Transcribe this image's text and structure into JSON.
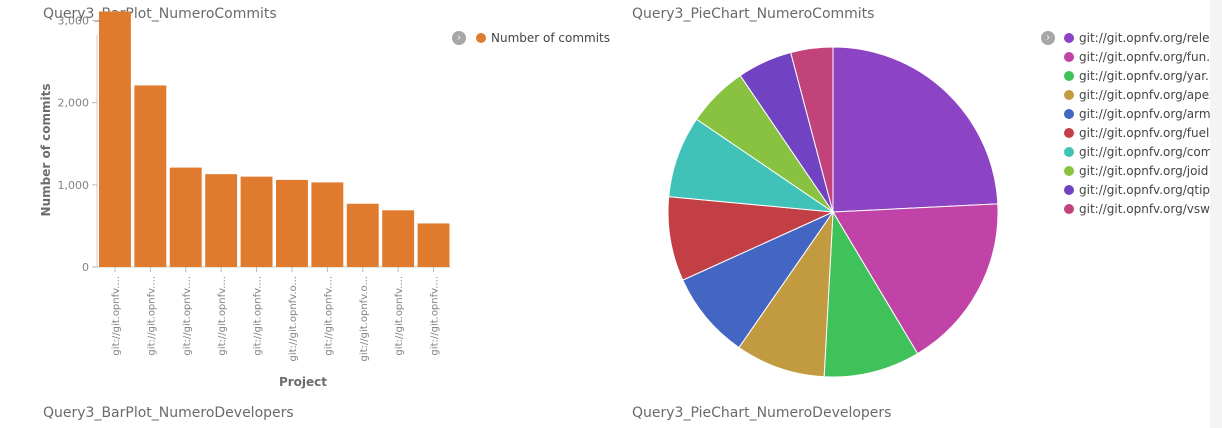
{
  "panels": {
    "bar_title": "Query3_BarPlot_NumeroCommits",
    "pie_title": "Query3_PieChart_NumeroCommits",
    "bottom_left_title": "Query3_BarPlot_NumeroDevelopers",
    "bottom_right_title": "Query3_PieChart_NumeroDevelopers"
  },
  "bar_legend": {
    "toggle_icon": "chevron-right-icon",
    "label": "Number of commits",
    "color": "#e07b2e"
  },
  "pie_legend": {
    "toggle_icon": "chevron-right-icon",
    "items": [
      {
        "label": "git://git.opnfv.org/rele...",
        "color": "#8c43c4"
      },
      {
        "label": "git://git.opnfv.org/fun...",
        "color": "#c243a8"
      },
      {
        "label": "git://git.opnfv.org/yar...",
        "color": "#40c25a"
      },
      {
        "label": "git://git.opnfv.org/apex",
        "color": "#c29a40"
      },
      {
        "label": "git://git.opnfv.org/arm...",
        "color": "#4366c2"
      },
      {
        "label": "git://git.opnfv.org/fuel",
        "color": "#c24045"
      },
      {
        "label": "git://git.opnfv.org/com...",
        "color": "#40c2b8"
      },
      {
        "label": "git://git.opnfv.org/joid",
        "color": "#89c240"
      },
      {
        "label": "git://git.opnfv.org/qtip",
        "color": "#7143c2"
      },
      {
        "label": "git://git.opnfv.org/vsw...",
        "color": "#c2437a"
      }
    ]
  },
  "chart_data": [
    {
      "type": "bar",
      "title": "Query3_BarPlot_NumeroCommits",
      "xlabel": "Project",
      "ylabel": "Number of commits",
      "categories": [
        "git://git.opnfv....",
        "git://git.opnfv....",
        "git://git.opnfv....",
        "git://git.opnfv....",
        "git://git.opnfv....",
        "git://git.opnfv.o...",
        "git://git.opnfv....",
        "git://git.opnfv.o...",
        "git://git.opnfv....",
        "git://git.opnfv...."
      ],
      "series": [
        {
          "name": "Number of commits",
          "values": [
            3110,
            2210,
            1210,
            1130,
            1100,
            1060,
            1030,
            770,
            690,
            530
          ]
        }
      ],
      "yticks": [
        0,
        1000,
        2000,
        3000
      ],
      "ytick_labels": [
        "0",
        "1,000",
        "2,000",
        "3,000"
      ],
      "ylim": [
        0,
        3250
      ],
      "legend_position": "top-right",
      "color": "#e07b2e"
    },
    {
      "type": "pie",
      "title": "Query3_PieChart_NumeroCommits",
      "categories": [
        "git://git.opnfv.org/rele...",
        "git://git.opnfv.org/fun...",
        "git://git.opnfv.org/yar...",
        "git://git.opnfv.org/apex",
        "git://git.opnfv.org/arm...",
        "git://git.opnfv.org/fuel",
        "git://git.opnfv.org/com...",
        "git://git.opnfv.org/joid",
        "git://git.opnfv.org/qtip",
        "git://git.opnfv.org/vsw..."
      ],
      "values": [
        3110,
        2210,
        1210,
        1130,
        1100,
        1060,
        1030,
        770,
        690,
        530
      ],
      "legend_position": "right"
    }
  ]
}
